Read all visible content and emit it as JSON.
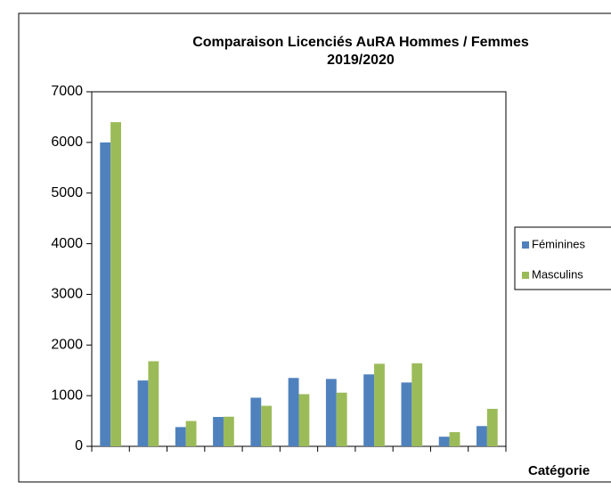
{
  "chart_data": {
    "type": "bar",
    "title": [
      "Comparaison Licenciés  AuRA Hommes / Femmes",
      "2019/2020"
    ],
    "x_label": "Catégorie",
    "categories": [
      null,
      null,
      null,
      null,
      null,
      null,
      null,
      null,
      null,
      null,
      null
    ],
    "series": [
      {
        "name": "Féminines",
        "color": "#4f81bd",
        "values": [
          6000,
          1300,
          380,
          580,
          960,
          1350,
          1330,
          1420,
          1260,
          190,
          400
        ]
      },
      {
        "name": "Masculins",
        "color": "#9bbb59",
        "values": [
          6400,
          1680,
          500,
          585,
          800,
          1030,
          1060,
          1630,
          1640,
          280,
          740
        ]
      }
    ],
    "ylim": [
      0,
      7000
    ],
    "yticks": [
      0,
      1000,
      2000,
      3000,
      4000,
      5000,
      6000,
      7000
    ],
    "grid": false,
    "legend": "right"
  }
}
